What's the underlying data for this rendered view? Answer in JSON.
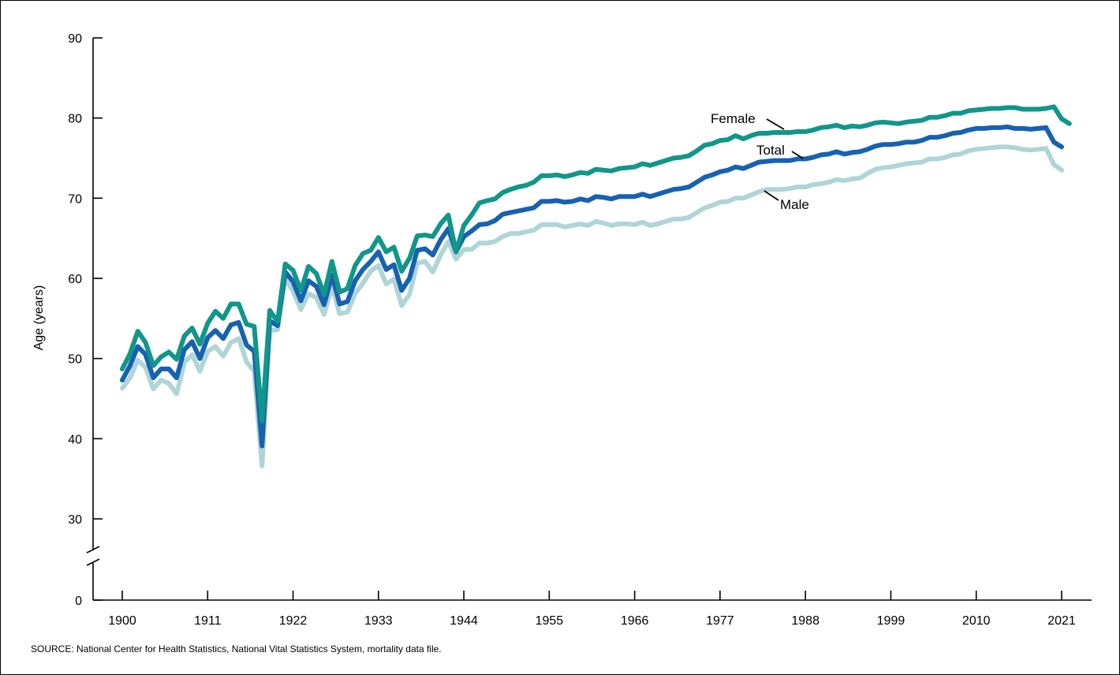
{
  "chart_data": {
    "type": "line",
    "ylabel": "Age (years)",
    "xlabel": "",
    "x_ticks": [
      1900,
      1911,
      1922,
      1933,
      1944,
      1955,
      1966,
      1977,
      1988,
      1999,
      2010,
      2021
    ],
    "y_ticks": [
      0,
      30,
      40,
      50,
      60,
      70,
      80,
      90
    ],
    "ylim": [
      0,
      90
    ],
    "axis_break": true,
    "grid": false,
    "legend": "inline-labels",
    "years_start": 1900,
    "years_end": 2021,
    "series": [
      {
        "name": "Female",
        "color": "#11968a",
        "values": [
          48.7,
          50.6,
          53.4,
          52.0,
          49.1,
          50.2,
          50.8,
          49.9,
          52.8,
          53.8,
          51.8,
          54.4,
          55.9,
          55.0,
          56.8,
          56.8,
          54.3,
          54.0,
          42.2,
          56.0,
          54.6,
          61.8,
          61.0,
          58.5,
          61.5,
          60.6,
          58.0,
          62.1,
          58.3,
          58.7,
          61.6,
          63.1,
          63.5,
          65.1,
          63.3,
          63.9,
          60.9,
          62.5,
          65.3,
          65.4,
          65.2,
          66.8,
          67.9,
          63.3,
          66.6,
          67.9,
          69.4,
          69.7,
          69.9,
          70.7,
          71.1,
          71.4,
          71.6,
          72.0,
          72.8,
          72.8,
          72.9,
          72.7,
          72.9,
          73.2,
          73.1,
          73.6,
          73.5,
          73.4,
          73.7,
          73.8,
          73.9,
          74.3,
          74.1,
          74.4,
          74.7,
          75.0,
          75.1,
          75.3,
          75.9,
          76.6,
          76.8,
          77.2,
          77.3,
          77.8,
          77.4,
          77.8,
          78.1,
          78.1,
          78.2,
          78.2,
          78.2,
          78.3,
          78.3,
          78.5,
          78.8,
          78.9,
          79.1,
          78.8,
          79.0,
          78.9,
          79.1,
          79.4,
          79.5,
          79.4,
          79.3,
          79.5,
          79.6,
          79.7,
          80.1,
          80.1,
          80.3,
          80.6,
          80.6,
          80.9,
          81.0,
          81.1,
          81.2,
          81.2,
          81.3,
          81.3,
          81.1,
          81.1,
          81.1,
          81.2,
          81.4,
          79.9,
          79.3
        ]
      },
      {
        "name": "Total",
        "color": "#1762b0",
        "values": [
          47.3,
          49.1,
          51.5,
          50.5,
          47.6,
          48.7,
          48.7,
          47.6,
          51.1,
          52.1,
          50.0,
          52.6,
          53.5,
          52.5,
          54.2,
          54.5,
          51.7,
          50.9,
          39.1,
          54.7,
          54.1,
          60.8,
          59.6,
          57.2,
          59.7,
          59.0,
          56.7,
          60.4,
          56.8,
          57.1,
          59.7,
          61.1,
          62.1,
          63.3,
          61.1,
          61.7,
          58.5,
          60.0,
          63.5,
          63.7,
          62.9,
          64.8,
          66.2,
          63.3,
          65.2,
          65.9,
          66.7,
          66.8,
          67.2,
          68.0,
          68.2,
          68.4,
          68.6,
          68.8,
          69.6,
          69.6,
          69.7,
          69.5,
          69.6,
          69.9,
          69.7,
          70.2,
          70.1,
          69.9,
          70.2,
          70.2,
          70.2,
          70.5,
          70.2,
          70.5,
          70.8,
          71.1,
          71.2,
          71.4,
          72.0,
          72.6,
          72.9,
          73.3,
          73.5,
          73.9,
          73.7,
          74.1,
          74.5,
          74.6,
          74.7,
          74.7,
          74.7,
          74.9,
          74.9,
          75.1,
          75.4,
          75.5,
          75.8,
          75.5,
          75.7,
          75.8,
          76.1,
          76.5,
          76.7,
          76.7,
          76.8,
          77.0,
          77.0,
          77.2,
          77.6,
          77.6,
          77.8,
          78.1,
          78.2,
          78.5,
          78.7,
          78.7,
          78.8,
          78.8,
          78.9,
          78.7,
          78.7,
          78.6,
          78.7,
          78.8,
          77.0,
          76.4
        ]
      },
      {
        "name": "Male",
        "color": "#afd5d7",
        "values": [
          46.3,
          47.6,
          49.8,
          48.9,
          46.2,
          47.3,
          46.9,
          45.6,
          49.5,
          50.5,
          48.4,
          50.9,
          51.5,
          50.3,
          52.0,
          52.5,
          49.6,
          48.4,
          36.6,
          53.5,
          53.6,
          60.0,
          58.4,
          56.1,
          58.1,
          57.6,
          55.5,
          59.0,
          55.6,
          55.8,
          58.1,
          59.4,
          60.9,
          61.6,
          59.3,
          59.9,
          56.6,
          58.0,
          61.9,
          62.1,
          60.8,
          62.9,
          64.6,
          62.4,
          63.6,
          63.6,
          64.4,
          64.4,
          64.6,
          65.2,
          65.6,
          65.6,
          65.8,
          66.0,
          66.7,
          66.7,
          66.7,
          66.4,
          66.6,
          66.8,
          66.6,
          67.1,
          66.9,
          66.6,
          66.8,
          66.8,
          66.7,
          67.0,
          66.6,
          66.8,
          67.1,
          67.4,
          67.4,
          67.6,
          68.2,
          68.8,
          69.1,
          69.5,
          69.6,
          70.0,
          70.0,
          70.4,
          70.8,
          71.1,
          71.1,
          71.1,
          71.2,
          71.4,
          71.4,
          71.7,
          71.8,
          72.0,
          72.3,
          72.2,
          72.4,
          72.5,
          73.1,
          73.6,
          73.8,
          73.9,
          74.1,
          74.3,
          74.4,
          74.5,
          74.9,
          74.9,
          75.1,
          75.4,
          75.5,
          75.9,
          76.1,
          76.2,
          76.3,
          76.4,
          76.4,
          76.3,
          76.1,
          76.0,
          76.1,
          76.2,
          74.2,
          73.5
        ]
      }
    ]
  },
  "source_note": "SOURCE: National Center for Health Statistics, National Vital Statistics System, mortality data file."
}
